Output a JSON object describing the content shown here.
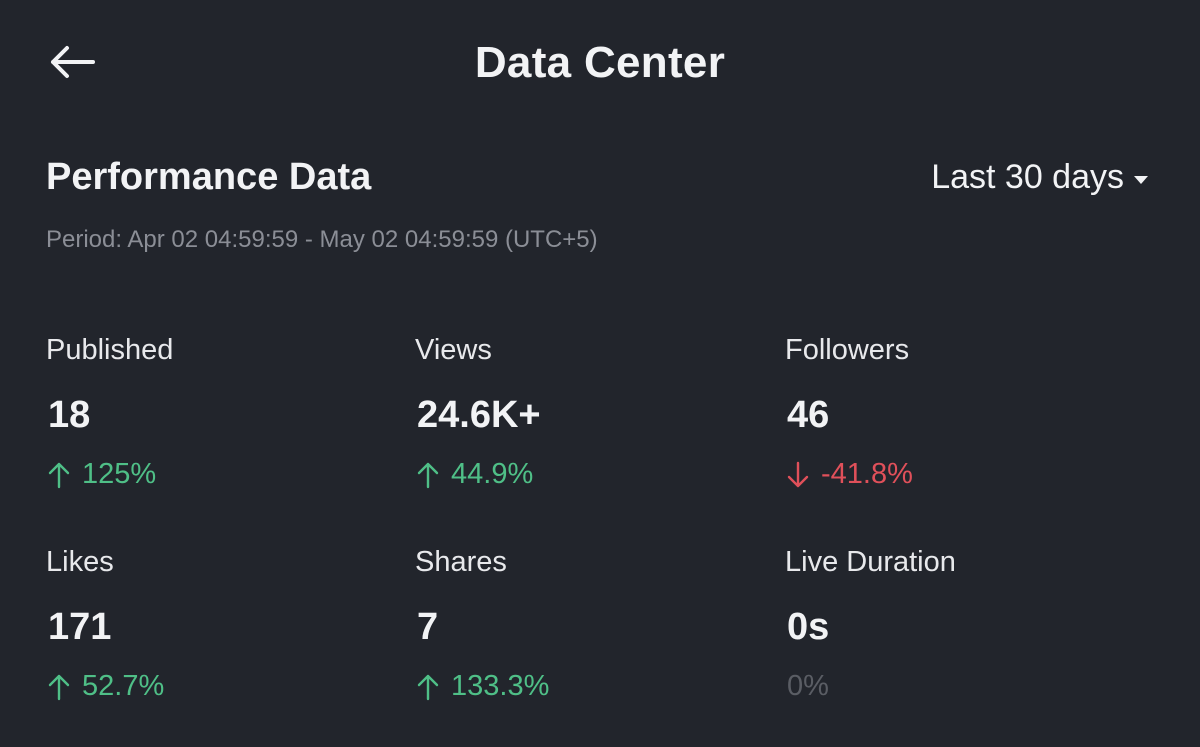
{
  "header": {
    "title": "Data Center",
    "back_icon": "arrow-left-icon"
  },
  "section": {
    "title": "Performance Data",
    "range": "Last 30 days",
    "period": "Period: Apr 02 04:59:59 - May 02 04:59:59 (UTC+5)"
  },
  "colors": {
    "background": "#22252c",
    "up": "#4fbf87",
    "down": "#e0505a",
    "neutral": "#5a5d64"
  },
  "metrics": [
    {
      "label": "Published",
      "value": "18",
      "change": "125%",
      "trend": "up"
    },
    {
      "label": "Views",
      "value": "24.6K+",
      "change": "44.9%",
      "trend": "up"
    },
    {
      "label": "Followers",
      "value": "46",
      "change": "-41.8%",
      "trend": "down"
    },
    {
      "label": "Likes",
      "value": "171",
      "change": "52.7%",
      "trend": "up"
    },
    {
      "label": "Shares",
      "value": "7",
      "change": "133.3%",
      "trend": "up"
    },
    {
      "label": "Live Duration",
      "value": "0s",
      "change": "0%",
      "trend": "neutral"
    }
  ]
}
